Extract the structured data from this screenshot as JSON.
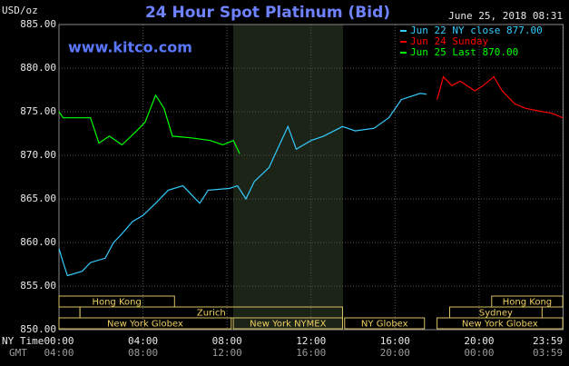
{
  "chart_data": {
    "type": "line",
    "title": "24 Hour Spot Platinum (Bid)",
    "unit_label": "USD/oz",
    "timestamp": "June 25, 2018 08:31",
    "watermark": "www.kitco.com",
    "xaxis_label": "NY Time",
    "xaxis2_label": "GMT",
    "xlim": [
      0,
      24
    ],
    "xticks": [
      {
        "value": 0,
        "label": "00:00"
      },
      {
        "value": 4,
        "label": "04:00"
      },
      {
        "value": 8,
        "label": "08:00"
      },
      {
        "value": 12,
        "label": "12:00"
      },
      {
        "value": 16,
        "label": "16:00"
      },
      {
        "value": 20,
        "label": "20:00"
      },
      {
        "value": 23.983,
        "label": "23:59"
      }
    ],
    "xticks_gmt": [
      "04:00",
      "08:00",
      "12:00",
      "16:00",
      "20:00",
      "00:00",
      "03:59"
    ],
    "ylim": [
      850,
      885
    ],
    "yticks": [
      {
        "value": 850,
        "label": "850.00"
      },
      {
        "value": 855,
        "label": "855.00"
      },
      {
        "value": 860,
        "label": "860.00"
      },
      {
        "value": 865,
        "label": "865.00"
      },
      {
        "value": 870,
        "label": "870.00"
      },
      {
        "value": 875,
        "label": "875.00"
      },
      {
        "value": 880,
        "label": "880.00"
      },
      {
        "value": 885,
        "label": "885.00"
      }
    ],
    "grid": true,
    "legend": "top-right",
    "series": [
      {
        "name": "Jun 22 NY close 877.00",
        "color": "#33ccff",
        "x": [
          0,
          0.2,
          0.4,
          1.1,
          1.5,
          2.2,
          2.6,
          3.0,
          3.5,
          4.0,
          4.6,
          5.2,
          5.9,
          6.3,
          6.7,
          7.1,
          8.1,
          8.5,
          8.9,
          9.3,
          10.0,
          10.4,
          10.9,
          11.3,
          12.0,
          12.6,
          13.5,
          14.1,
          15.0,
          15.7,
          16.3,
          17.2,
          17.5
        ],
        "values": [
          859.3,
          857.7,
          856.2,
          856.7,
          857.7,
          858.2,
          860,
          861,
          862.4,
          863.1,
          864.5,
          866,
          866.5,
          865.5,
          864.5,
          866,
          866.2,
          866.5,
          865,
          867,
          868.6,
          870.7,
          873.3,
          870.7,
          871.7,
          872.2,
          873.3,
          872.8,
          873.1,
          874.3,
          876.4,
          877.1,
          877
        ]
      },
      {
        "name": "Jun 24 Sunday",
        "color": "#ff0000",
        "x": [
          18.0,
          18.3,
          18.7,
          19.1,
          19.8,
          20.2,
          20.7,
          21.1,
          21.7,
          22.2,
          22.8,
          23.5,
          23.983
        ],
        "values": [
          876.4,
          879,
          878,
          878.5,
          877.4,
          878,
          879,
          877.4,
          875.9,
          875.4,
          875.1,
          874.8,
          874.3
        ]
      },
      {
        "name": "Jun 25 Last 870.00",
        "color": "#00ff00",
        "x": [
          0,
          0.2,
          1.5,
          1.9,
          2.4,
          3.0,
          3.7,
          4.1,
          4.6,
          5.0,
          5.4,
          6.3,
          7.2,
          7.8,
          8.3,
          8.6
        ],
        "values": [
          875,
          874.3,
          874.3,
          871.4,
          872.2,
          871.2,
          872.8,
          873.8,
          876.9,
          875.4,
          872.2,
          872,
          871.7,
          871.2,
          871.7,
          870.2
        ]
      }
    ],
    "sessions": [
      {
        "label": "Hong Kong",
        "start": 0,
        "end": 5.5
      },
      {
        "label": "Zurich",
        "start": 1,
        "end": 13.5
      },
      {
        "label": "New York Globex",
        "start": 0,
        "end": 8.2
      },
      {
        "label": "New York NYMEX",
        "start": 8.3,
        "end": 13.5
      },
      {
        "label": "NY Globex",
        "start": 13.6,
        "end": 17.4
      },
      {
        "label": "Hong Kong",
        "start": 20.6,
        "end": 23.983
      },
      {
        "label": "Sydney",
        "start": 18.6,
        "end": 23.0
      },
      {
        "label": "New York Globex",
        "start": 18.0,
        "end": 23.983
      }
    ]
  }
}
